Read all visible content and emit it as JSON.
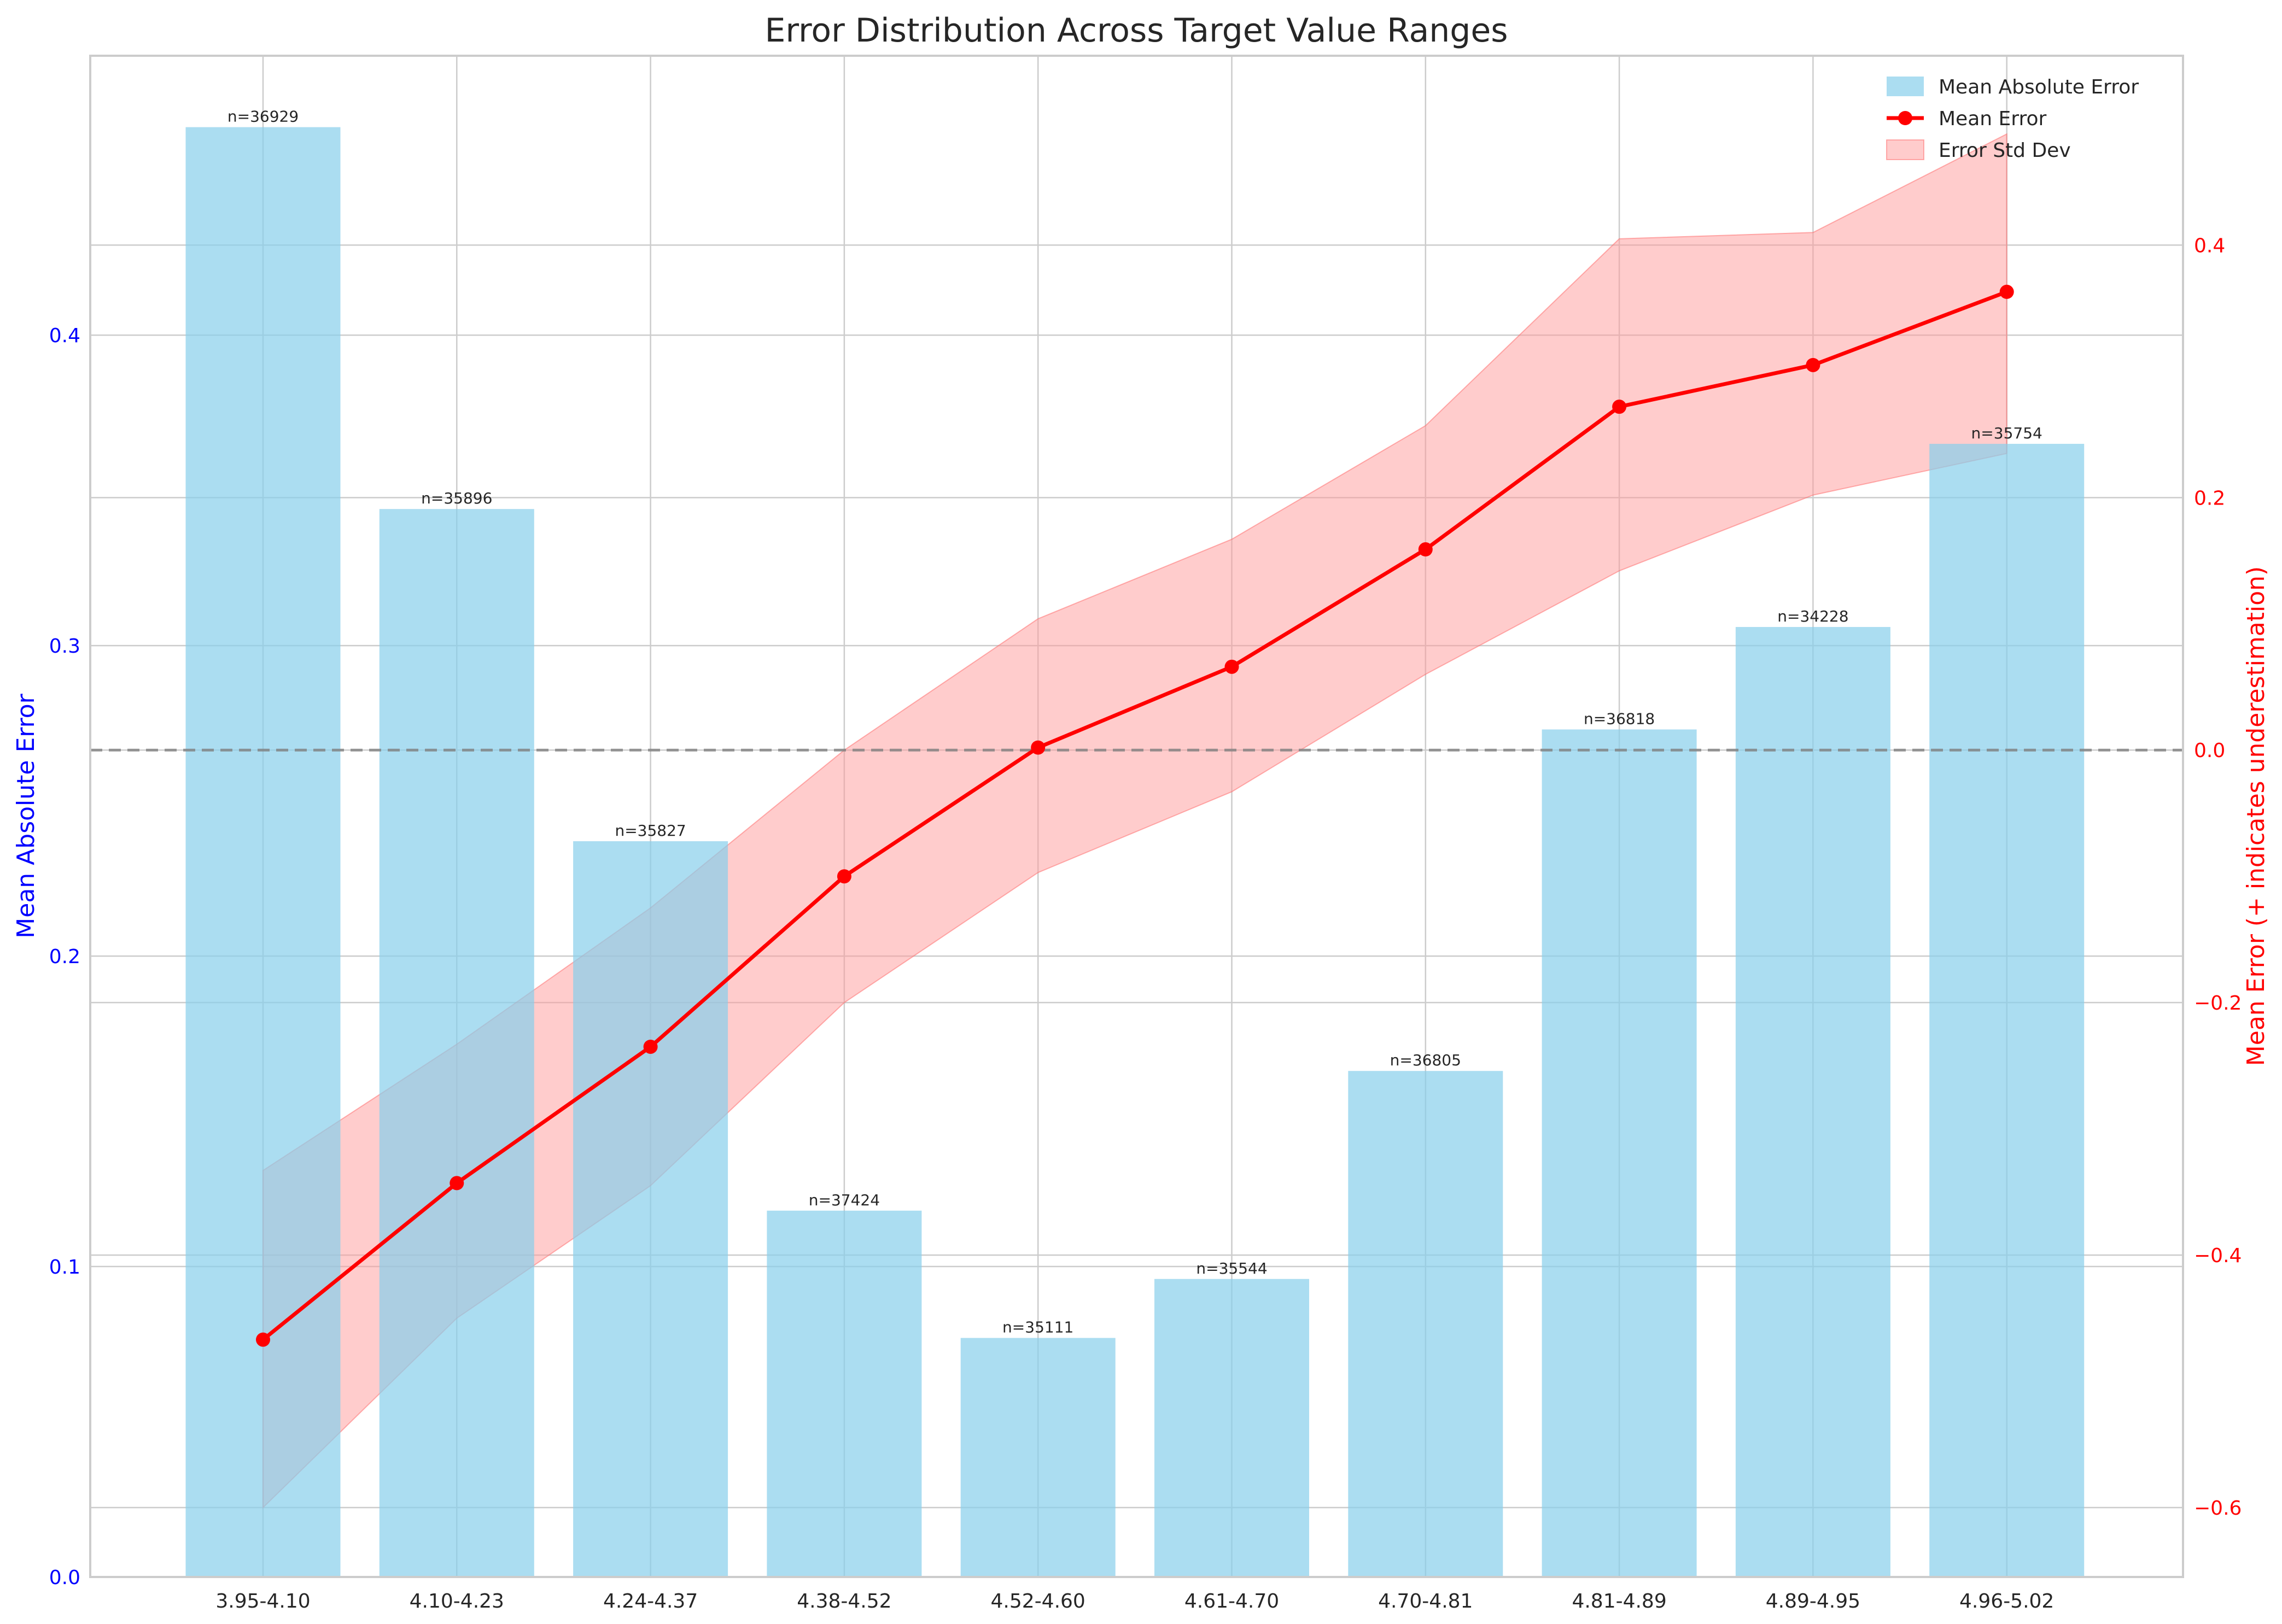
{
  "chart_data": {
    "type": "bar",
    "title": "Error Distribution Across Target Value Ranges",
    "categories": [
      "3.95-4.10",
      "4.10-4.23",
      "4.24-4.37",
      "4.38-4.52",
      "4.52-4.60",
      "4.61-4.70",
      "4.70-4.81",
      "4.81-4.89",
      "4.89-4.95",
      "4.96-5.02"
    ],
    "counts": [
      "n=36929",
      "n=35896",
      "n=35827",
      "n=37424",
      "n=35111",
      "n=35544",
      "n=36805",
      "n=36818",
      "n=34228",
      "n=35754"
    ],
    "series": [
      {
        "name": "Mean Absolute Error",
        "type": "bar",
        "axis": "left",
        "color": "#87ceeb",
        "values": [
          0.467,
          0.344,
          0.237,
          0.118,
          0.077,
          0.096,
          0.163,
          0.273,
          0.306,
          0.365
        ]
      },
      {
        "name": "Mean Error",
        "type": "line",
        "axis": "right",
        "color": "#ff0000",
        "values": [
          -0.467,
          -0.343,
          -0.235,
          -0.1,
          0.002,
          0.066,
          0.159,
          0.272,
          0.305,
          0.363
        ]
      },
      {
        "name": "Error Std Dev",
        "type": "band",
        "axis": "right",
        "color": "#ff9999",
        "lower": [
          -0.6,
          -0.45,
          -0.345,
          -0.2,
          -0.097,
          -0.033,
          0.06,
          0.142,
          0.202,
          0.235
        ],
        "upper": [
          -0.333,
          -0.233,
          -0.125,
          0.0,
          0.104,
          0.167,
          0.257,
          0.405,
          0.41,
          0.488
        ]
      }
    ],
    "ylabel": "Mean Absolute Error",
    "ylim": [
      0,
      0.49
    ],
    "yticks": [
      "0.0",
      "0.1",
      "0.2",
      "0.3",
      "0.4"
    ],
    "y2label": "Mean Error (+ indicates underestimation)",
    "y2lim": [
      -0.655,
      0.55
    ],
    "y2ticks": [
      "−0.6",
      "−0.4",
      "−0.2",
      "0.0",
      "0.2",
      "0.4"
    ],
    "reference_line": 0,
    "grid": true,
    "legend": "top-right"
  }
}
